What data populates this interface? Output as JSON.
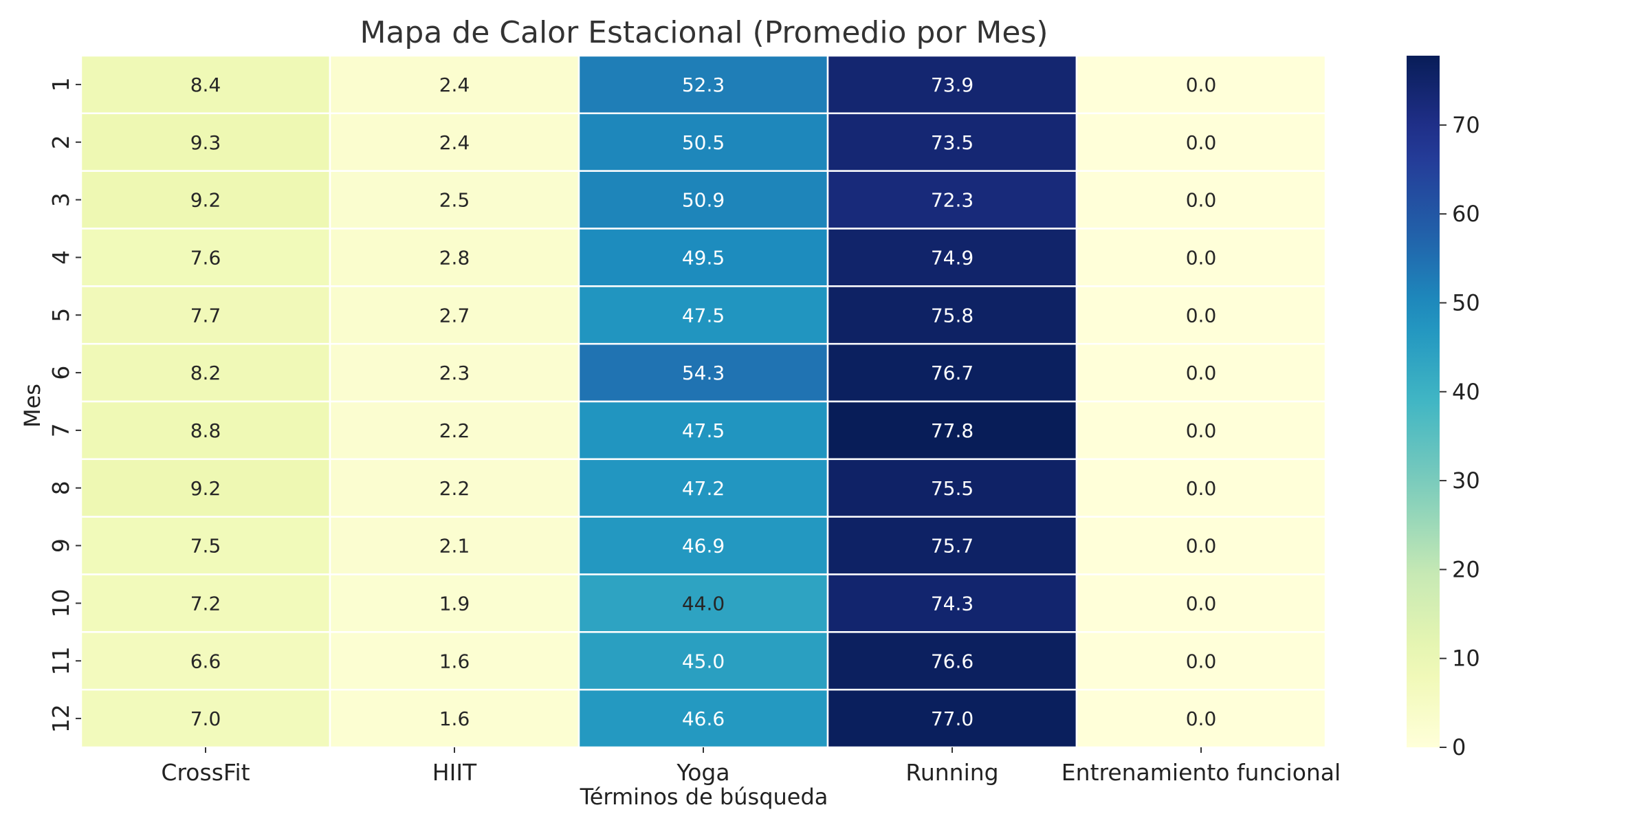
{
  "chart_data": {
    "type": "heatmap",
    "title": "Mapa de Calor Estacional (Promedio por Mes)",
    "xlabel": "Términos de búsqueda",
    "ylabel": "Mes",
    "columns": [
      "CrossFit",
      "HIIT",
      "Yoga",
      "Running",
      "Entrenamiento funcional"
    ],
    "rows": [
      "1",
      "2",
      "3",
      "4",
      "5",
      "6",
      "7",
      "8",
      "9",
      "10",
      "11",
      "12"
    ],
    "values": [
      [
        8.4,
        2.4,
        52.3,
        73.9,
        0.0
      ],
      [
        9.3,
        2.4,
        50.5,
        73.5,
        0.0
      ],
      [
        9.2,
        2.5,
        50.9,
        72.3,
        0.0
      ],
      [
        7.6,
        2.8,
        49.5,
        74.9,
        0.0
      ],
      [
        7.7,
        2.7,
        47.5,
        75.8,
        0.0
      ],
      [
        8.2,
        2.3,
        54.3,
        76.7,
        0.0
      ],
      [
        8.8,
        2.2,
        47.5,
        77.8,
        0.0
      ],
      [
        9.2,
        2.2,
        47.2,
        75.5,
        0.0
      ],
      [
        7.5,
        2.1,
        46.9,
        75.7,
        0.0
      ],
      [
        7.2,
        1.9,
        44.0,
        74.3,
        0.0
      ],
      [
        6.6,
        1.6,
        45.0,
        76.6,
        0.0
      ],
      [
        7.0,
        1.6,
        46.6,
        77.0,
        0.0
      ]
    ],
    "colormap": "YlGnBu",
    "vmin": 0,
    "vmax": 77.8,
    "colorbar_ticks": [
      0,
      10,
      20,
      30,
      40,
      50,
      60,
      70
    ],
    "annotations": true,
    "legend": "colorbar-right"
  }
}
